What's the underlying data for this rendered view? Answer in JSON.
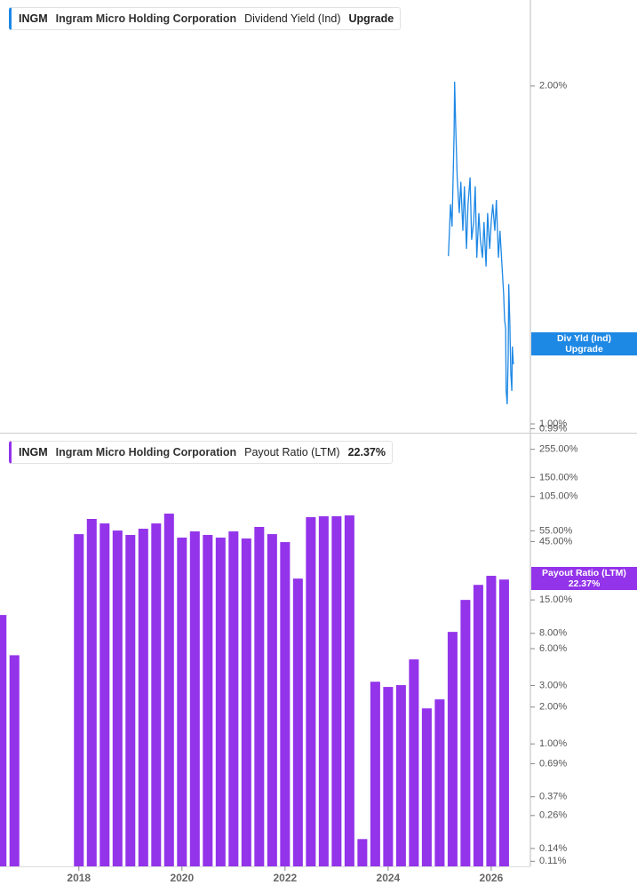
{
  "chart_data": [
    {
      "type": "line",
      "ticker": "INGM",
      "company": "Ingram Micro Holding Corporation",
      "metric": "Dividend Yield (Ind)",
      "latest": "Upgrade",
      "tag_label": "Div Yld (Ind)",
      "color": "#1e88e5",
      "log_scale": true,
      "grid": false,
      "xlim": [
        2016.47,
        2026.76
      ],
      "ylim": [
        0.982,
        2.386
      ],
      "yticks": [
        {
          "value": 2,
          "label": "2.00%"
        },
        {
          "value": 1,
          "label": "1.00%"
        },
        {
          "value": 0.99,
          "label": "0.99%"
        }
      ],
      "x": [
        2025.17,
        2025.21,
        2025.24,
        2025.28,
        2025.29,
        2025.31,
        2025.34,
        2025.38,
        2025.41,
        2025.45,
        2025.48,
        2025.52,
        2025.55,
        2025.59,
        2025.62,
        2025.66,
        2025.69,
        2025.72,
        2025.76,
        2025.79,
        2025.83,
        2025.86,
        2025.9,
        2025.93,
        2025.97,
        2026.0,
        2026.03,
        2026.07,
        2026.1,
        2026.14,
        2026.17,
        2026.21,
        2026.24,
        2026.26,
        2026.28,
        2026.29,
        2026.31,
        2026.33,
        2026.34,
        2026.36,
        2026.38,
        2026.4,
        2026.41,
        2026.43
      ],
      "values": [
        1.411,
        1.569,
        1.499,
        1.816,
        2.018,
        1.849,
        1.658,
        1.541,
        1.643,
        1.486,
        1.628,
        1.432,
        1.569,
        1.658,
        1.459,
        1.513,
        1.628,
        1.406,
        1.541,
        1.459,
        1.406,
        1.513,
        1.381,
        1.541,
        1.432,
        1.513,
        1.569,
        1.486,
        1.583,
        1.406,
        1.486,
        1.381,
        1.308,
        1.238,
        1.216,
        1.07,
        1.041,
        1.151,
        1.332,
        1.238,
        1.11,
        1.07,
        1.172,
        1.13
      ]
    },
    {
      "type": "bar",
      "ticker": "INGM",
      "company": "Ingram Micro Holding Corporation",
      "metric": "Payout Ratio (LTM)",
      "latest": {
        "value": 22.37,
        "label": "22.37%"
      },
      "color": "#9333ea",
      "log_scale": true,
      "grid": false,
      "xlim": [
        2016.47,
        2026.76
      ],
      "xticks": [
        2018,
        2020,
        2022,
        2024,
        2026
      ],
      "ylim": [
        0.1,
        331
      ],
      "yticks": [
        {
          "value": 255,
          "label": "255.00%"
        },
        {
          "value": 150,
          "label": "150.00%"
        },
        {
          "value": 105,
          "label": "105.00%"
        },
        {
          "value": 55,
          "label": "55.00%"
        },
        {
          "value": 45,
          "label": "45.00%"
        },
        {
          "value": 15,
          "label": "15.00%"
        },
        {
          "value": 8,
          "label": "8.00%"
        },
        {
          "value": 6,
          "label": "6.00%"
        },
        {
          "value": 3,
          "label": "3.00%"
        },
        {
          "value": 2,
          "label": "2.00%"
        },
        {
          "value": 1,
          "label": "1.00%"
        },
        {
          "value": 0.69,
          "label": "0.69%"
        },
        {
          "value": 0.37,
          "label": "0.37%"
        },
        {
          "value": 0.26,
          "label": "0.26%"
        },
        {
          "value": 0.14,
          "label": "0.14%"
        },
        {
          "value": 0.11,
          "label": "0.11%"
        }
      ],
      "x": [
        2016.5,
        2016.75,
        2018.0,
        2018.25,
        2018.5,
        2018.75,
        2019.0,
        2019.25,
        2019.5,
        2019.75,
        2020.0,
        2020.25,
        2020.5,
        2020.75,
        2021.0,
        2021.25,
        2021.5,
        2021.75,
        2022.0,
        2022.25,
        2022.5,
        2022.75,
        2023.0,
        2023.25,
        2023.5,
        2023.75,
        2024.0,
        2024.25,
        2024.5,
        2024.75,
        2025.0,
        2025.25,
        2025.5,
        2025.75,
        2026.0,
        2026.25
      ],
      "values": [
        11.3,
        5.3,
        51.7,
        68.8,
        63.2,
        55.3,
        50.9,
        57.2,
        63.2,
        76.0,
        48.4,
        54.4,
        50.9,
        48.4,
        54.4,
        47.6,
        59.2,
        51.7,
        44.5,
        22.4,
        71.1,
        72.3,
        72.3,
        73.5,
        0.167,
        3.22,
        2.92,
        3.02,
        4.9,
        1.95,
        2.31,
        8.22,
        15.0,
        19.9,
        23.6,
        22.0
      ]
    }
  ]
}
